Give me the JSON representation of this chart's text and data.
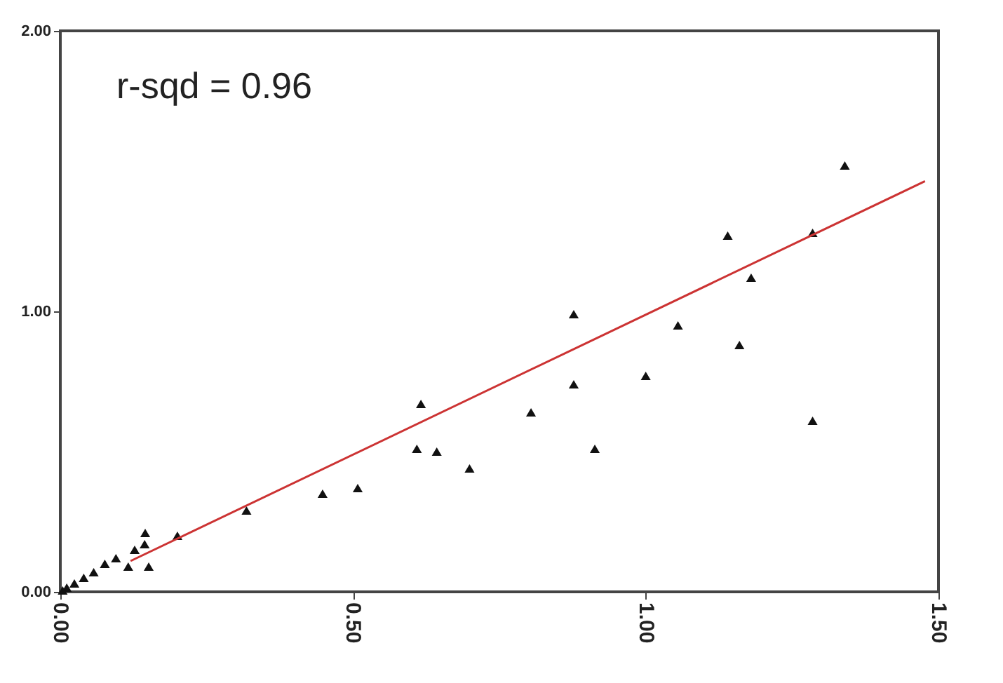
{
  "chart_data": {
    "type": "scatter",
    "annotations": [
      "r-sqd = 0.96"
    ],
    "xlim": [
      0,
      1.5
    ],
    "ylim": [
      0,
      2
    ],
    "xticks": [
      {
        "value": 0,
        "label": "0.00"
      },
      {
        "value": 0.5,
        "label": "0.50"
      },
      {
        "value": 1,
        "label": "1.00"
      },
      {
        "value": 1.5,
        "label": "1.50"
      }
    ],
    "yticks": [
      {
        "value": 0,
        "label": "0.00"
      },
      {
        "value": 1,
        "label": "1.00"
      },
      {
        "value": 2,
        "label": "2.00"
      }
    ],
    "series": [
      {
        "type": "scatter",
        "marker": "triangle",
        "color": "#111111",
        "x": [
          1.34,
          1.14,
          1.285,
          1.18,
          0.877,
          1.055,
          1.16,
          1.0,
          0.877,
          1.285,
          0.804,
          0.616,
          0.609,
          0.643,
          0.913,
          0.699,
          0.508,
          0.448,
          0.318,
          0.2,
          0.151,
          0.145,
          0.144,
          0.127,
          0.116,
          0.095,
          0.076,
          0.057,
          0.04,
          0.024,
          0.011,
          0.004
        ],
        "values": [
          1.52,
          1.27,
          1.28,
          1.12,
          0.99,
          0.95,
          0.88,
          0.77,
          0.74,
          0.61,
          0.64,
          0.67,
          0.51,
          0.5,
          0.51,
          0.44,
          0.37,
          0.35,
          0.29,
          0.2,
          0.09,
          0.21,
          0.17,
          0.15,
          0.09,
          0.12,
          0.1,
          0.07,
          0.05,
          0.03,
          0.015,
          0.005
        ]
      },
      {
        "type": "line",
        "line_style": "solid",
        "color": "#cc3333",
        "x": [
          0.12,
          1.477
        ],
        "values": [
          0.11,
          1.464
        ]
      }
    ]
  }
}
